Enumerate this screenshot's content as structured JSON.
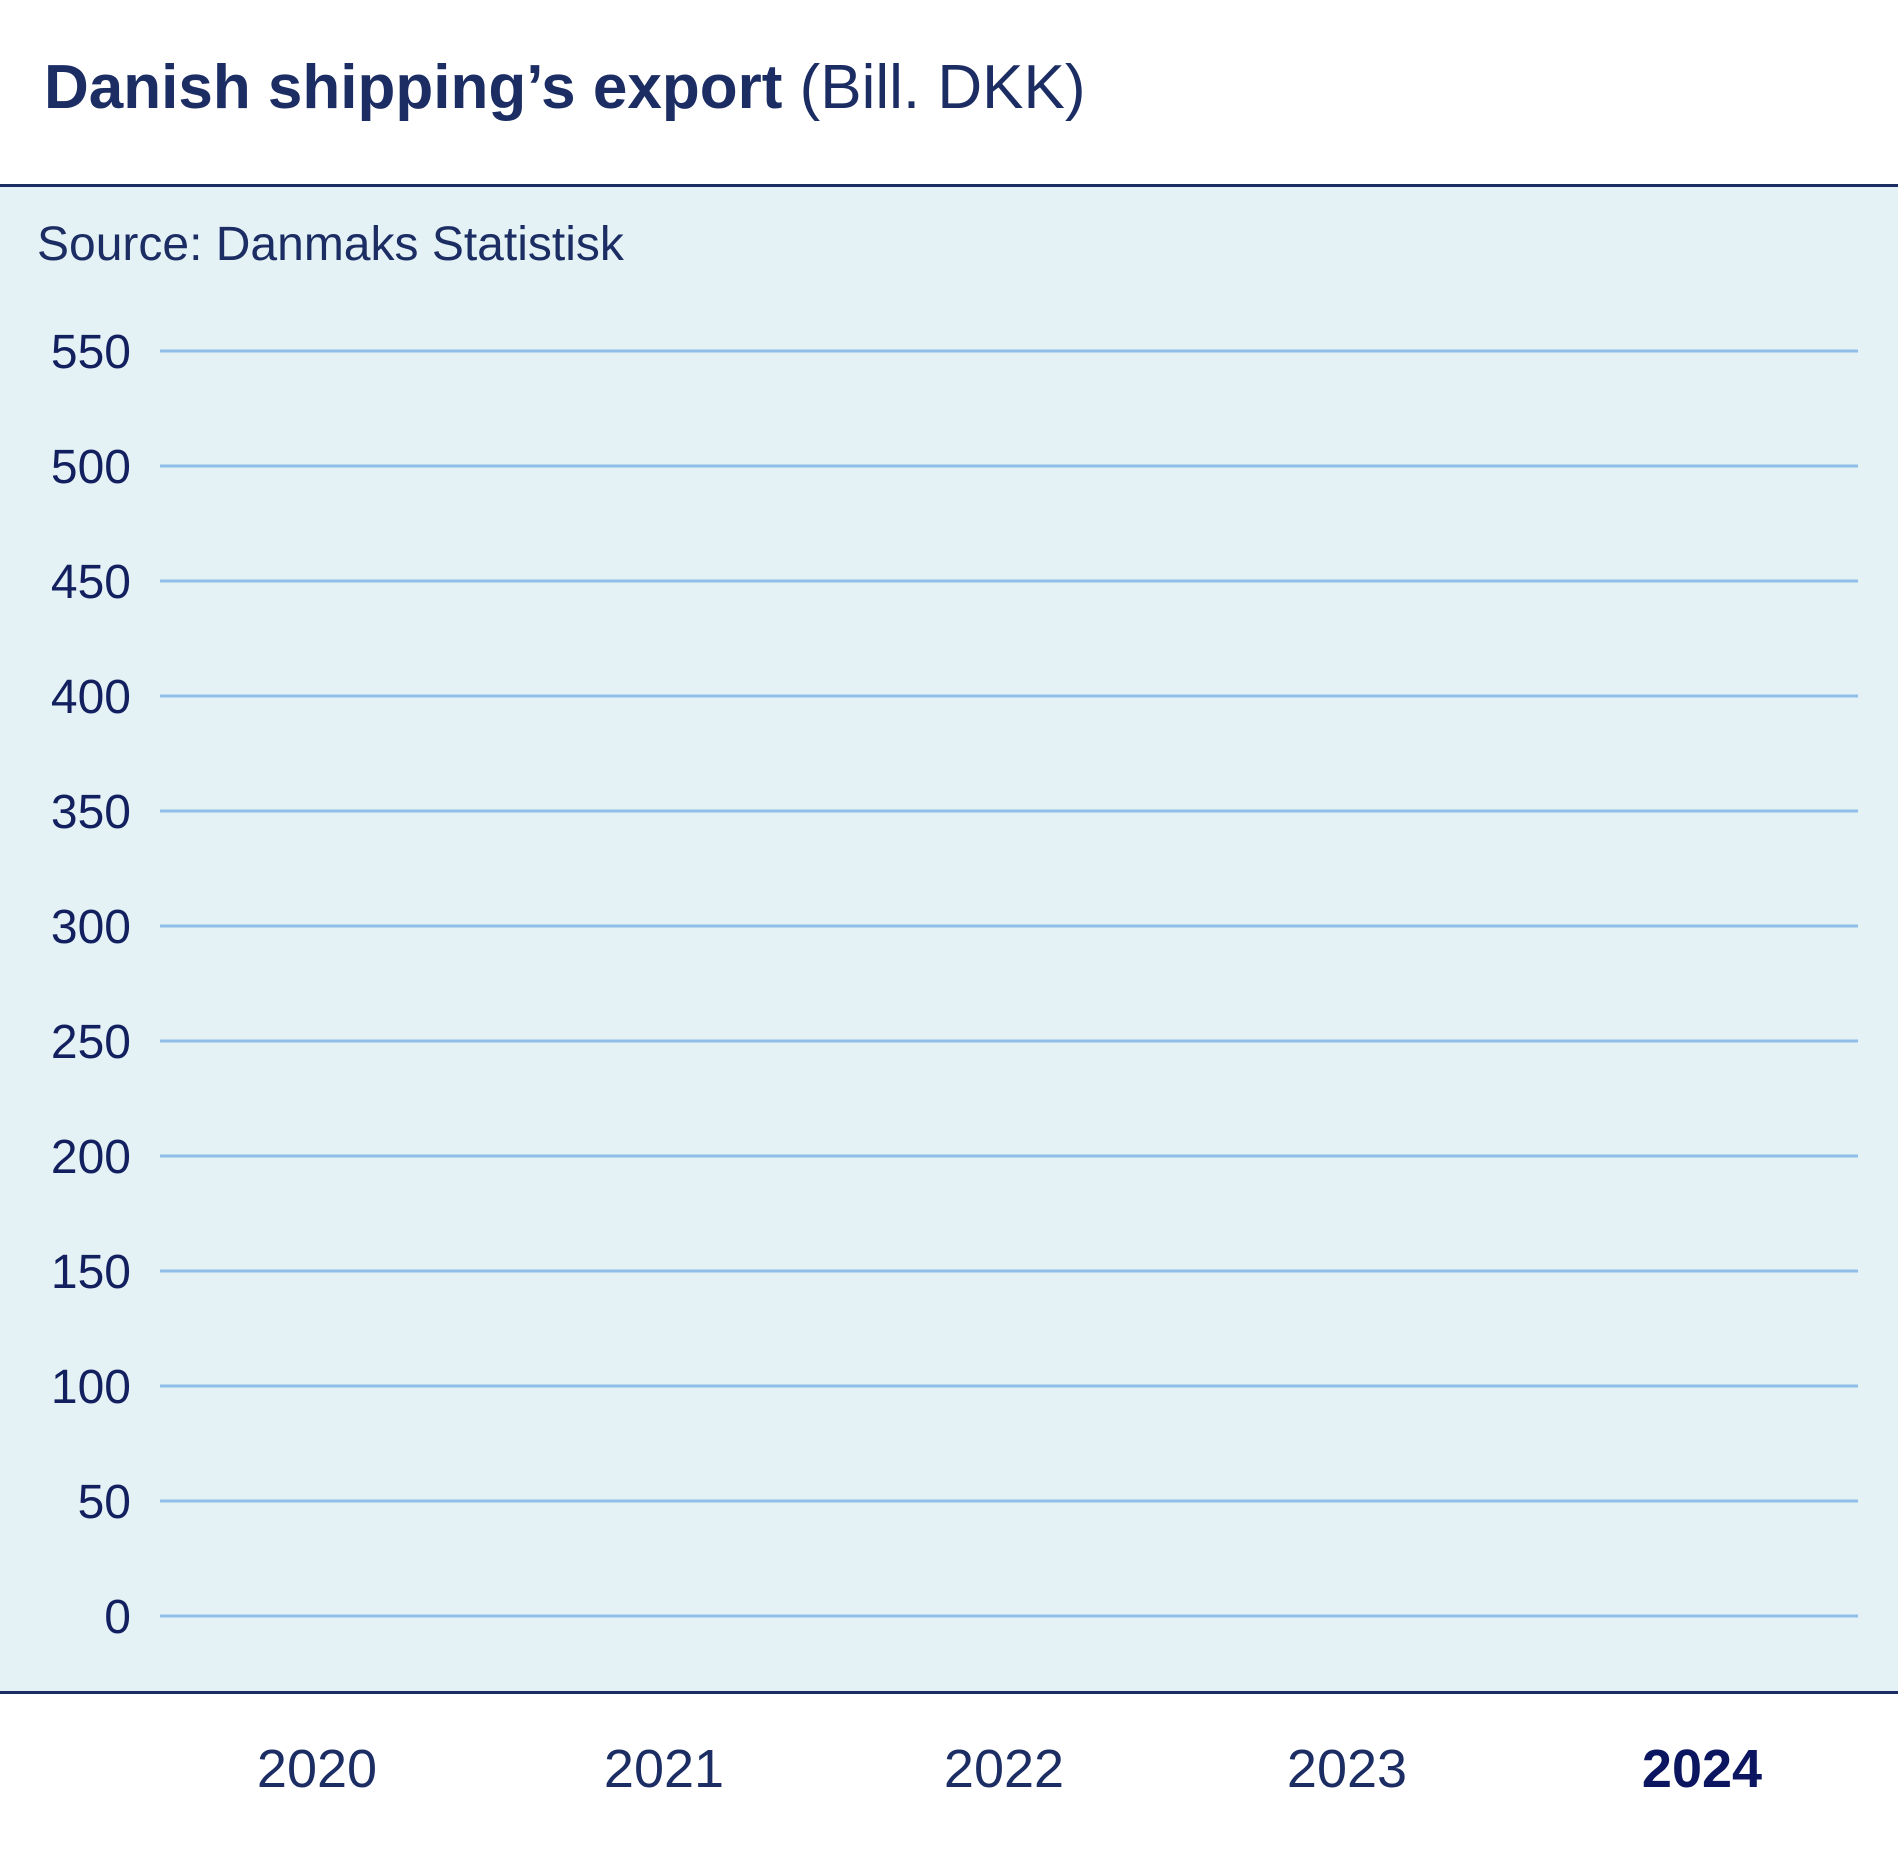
{
  "chart_data": {
    "type": "bar",
    "title": "Danish shipping’s export",
    "title_unit": "(Bill. DKK)",
    "source": "Source: Danmaks Statistisk",
    "xlabel": "",
    "ylabel": "Bill. DKK",
    "categories": [
      "2020",
      "2021",
      "2022",
      "2023",
      "2024"
    ],
    "highlighted_category": "2024",
    "values": [
      null,
      null,
      null,
      null,
      null
    ],
    "ylim": [
      0,
      550
    ],
    "yticks": [
      0,
      50,
      100,
      150,
      200,
      250,
      300,
      350,
      400,
      450,
      500,
      550
    ],
    "grid": true,
    "colors": {
      "grid": "#8fbfe8",
      "text": "#13205f",
      "panel": "#e4f2f5"
    }
  }
}
